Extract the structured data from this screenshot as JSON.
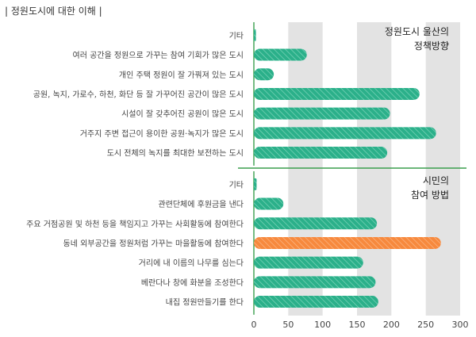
{
  "page_header": "| 정원도시에 대한 이해 |",
  "chart_data": {
    "type": "bar",
    "orientation": "horizontal",
    "xlim": [
      0,
      300
    ],
    "x_ticks": [
      0,
      50,
      100,
      150,
      200,
      250,
      300
    ],
    "grid": "alternating vertical bands",
    "colors": {
      "bar": "#2bb08a",
      "highlight": "#f7893d",
      "band": "#e3e3e3",
      "accent_line": "#3a9e4d"
    },
    "panels": [
      {
        "title_lines": [
          "정원도시 울산의",
          "정책방향"
        ],
        "categories": [
          "기타",
          "여러 공간을 정원으로 가꾸는 참여 기회가 많은 도시",
          "개인 주택 정원이 잘 가꿔져 있는 도시",
          "공원, 녹지, 가로수, 하천, 화단 등 잘 가꾸어진 공간이 많은 도시",
          "시설이 잘 갖추어진 공원이 많은 도시",
          "거주지 주변 접근이 용이한 공원·녹지가 많은 도시",
          "도시 전체의 녹지를 최대한 보전하는 도시"
        ],
        "values": [
          3,
          77,
          29,
          241,
          198,
          265,
          194
        ],
        "highlight_index": -1
      },
      {
        "title_lines": [
          "시민의",
          "참여 방법"
        ],
        "categories": [
          "기타",
          "관련단체에 후원금을 낸다",
          "주요 거점공원 및 하천 등을 책임지고 가꾸는 사회활동에 참여한다",
          "동네 외부공간을 정원처럼 가꾸는 마을활동에 참여한다",
          "거리에 내 이름의 나무를 심는다",
          "베란다나 창에 화분을 조성한다",
          "내집 정원만들기를 한다"
        ],
        "values": [
          4,
          43,
          179,
          272,
          159,
          177,
          181
        ],
        "highlight_index": 3
      }
    ]
  }
}
